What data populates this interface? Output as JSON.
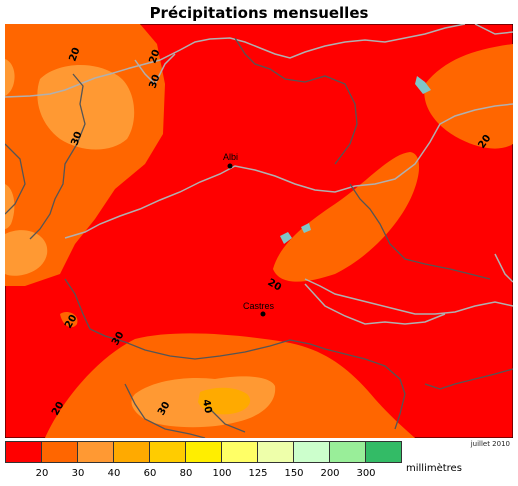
{
  "title": "Précipitations mensuelles",
  "date": "juillet 2010",
  "legend": {
    "unit": "millimètres",
    "colors": [
      "#ff0000",
      "#ff6600",
      "#ff9933",
      "#ffaa00",
      "#ffcc00",
      "#ffee00",
      "#ffff66",
      "#eeffaa",
      "#ccffcc",
      "#99ee99",
      "#33bb66"
    ],
    "ticks": [
      "20",
      "30",
      "40",
      "60",
      "80",
      "100",
      "125",
      "150",
      "200",
      "300"
    ]
  },
  "map": {
    "cities": [
      {
        "name": "Albi"
      },
      {
        "name": "Castres"
      }
    ],
    "contour_labels": [
      "20",
      "30",
      "20",
      "30",
      "20",
      "20",
      "20",
      "20",
      "30",
      "40",
      "30"
    ]
  }
}
